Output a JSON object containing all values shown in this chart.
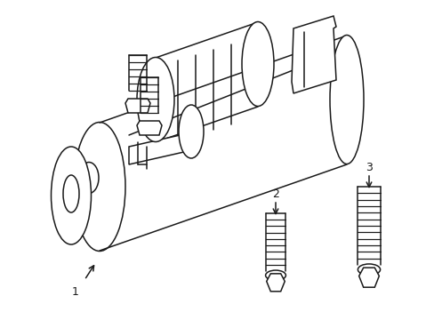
{
  "background_color": "#ffffff",
  "line_color": "#1a1a1a",
  "line_width": 1.1,
  "label_fontsize": 9,
  "fig_width": 4.89,
  "fig_height": 3.6,
  "dpi": 100
}
